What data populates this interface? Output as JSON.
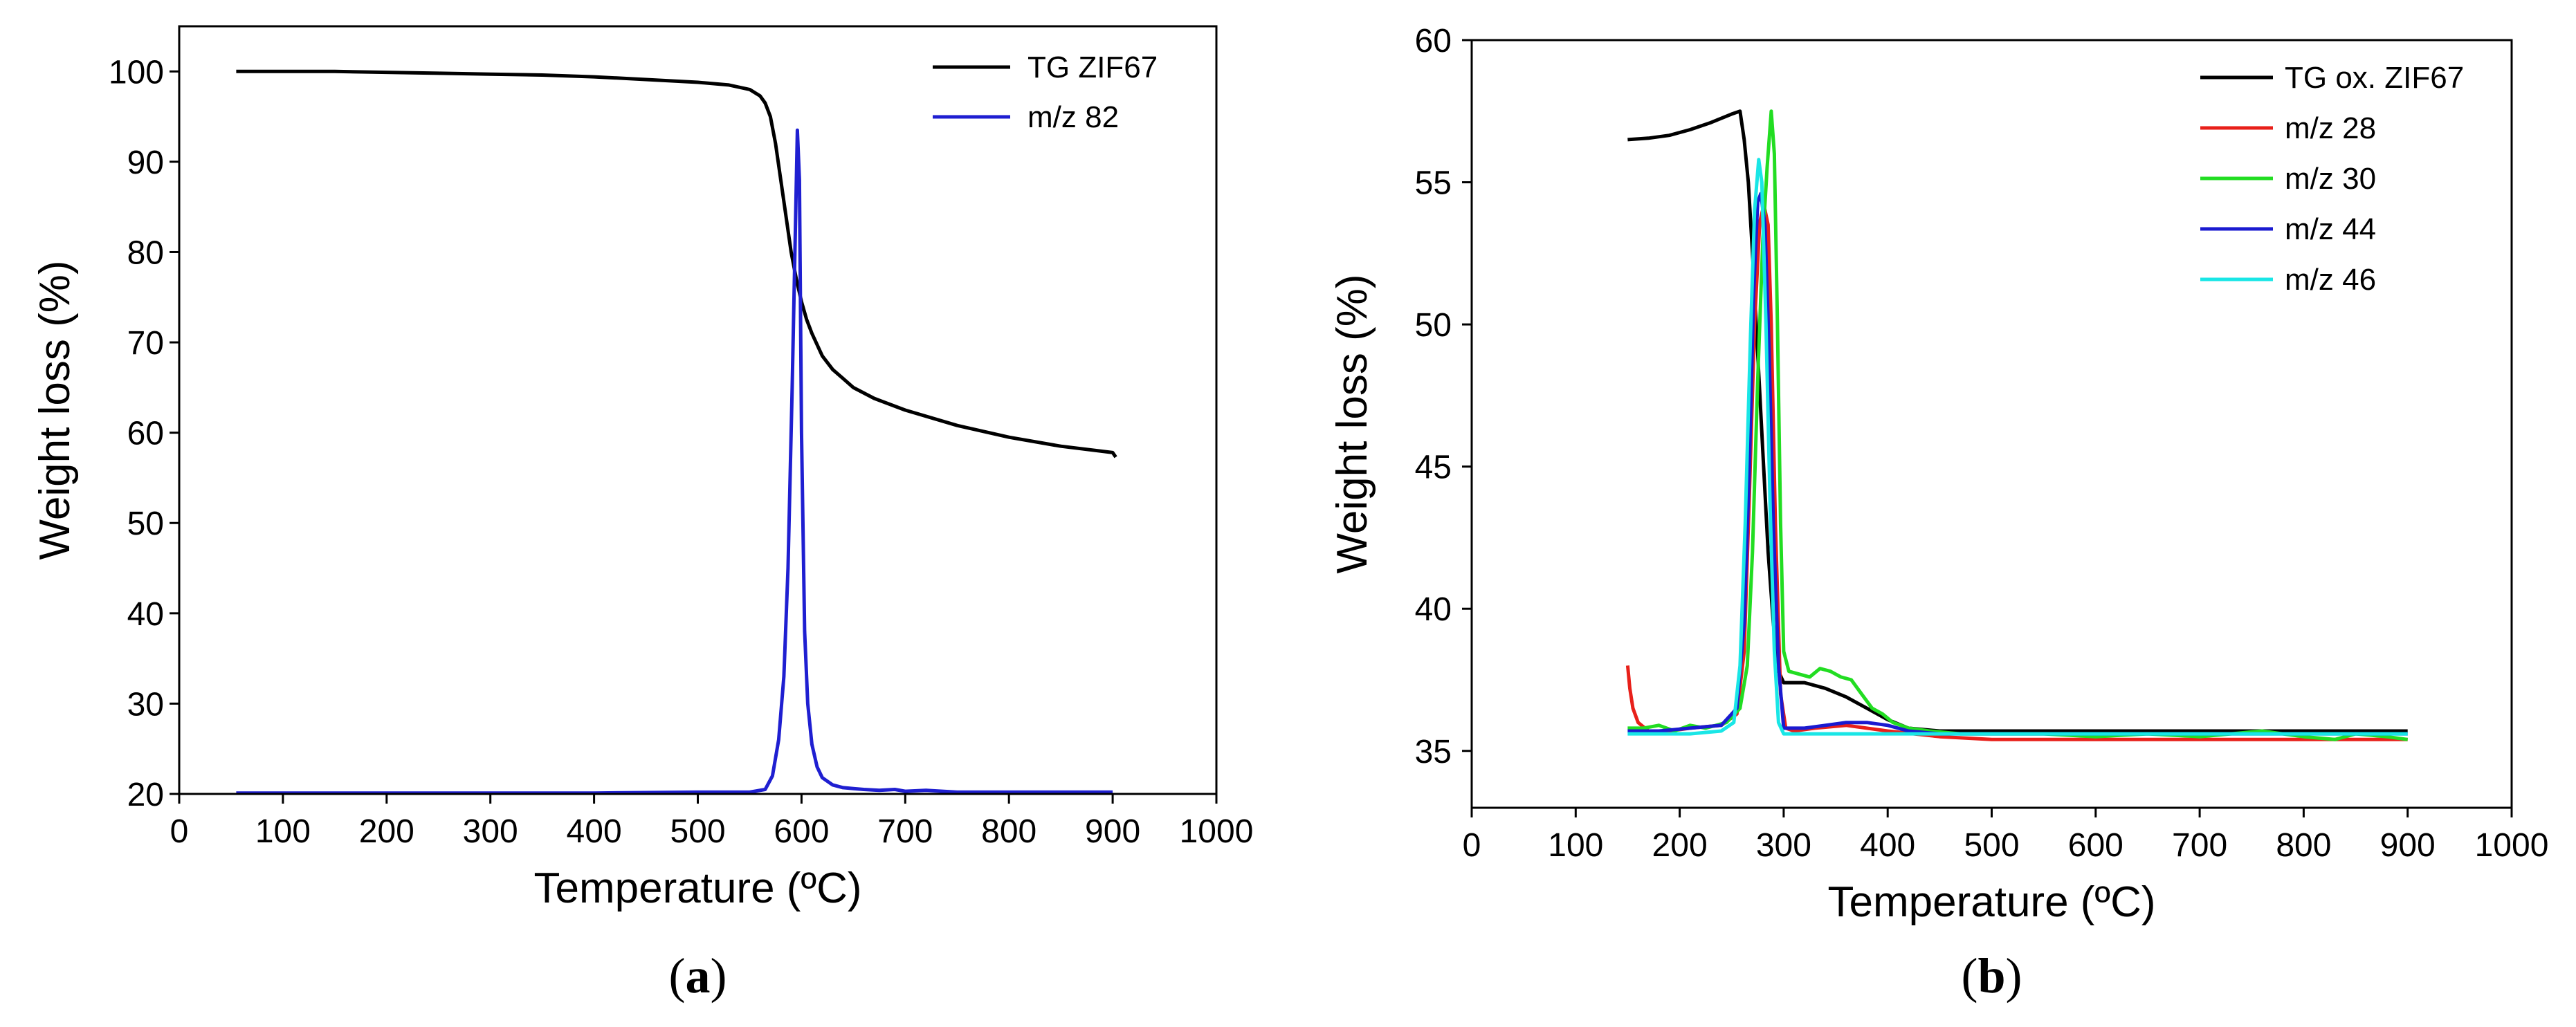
{
  "chart_data": [
    {
      "id": "a",
      "type": "line",
      "panel_label": {
        "open": "(",
        "letter": "a",
        "close": ")"
      },
      "xlabel": "Temperature (ºC)",
      "ylabel": "Weight loss (%)",
      "xlim": [
        0,
        1000
      ],
      "ylim": [
        20,
        105
      ],
      "xticks": [
        0,
        100,
        200,
        300,
        400,
        500,
        600,
        700,
        800,
        900,
        1000
      ],
      "yticks": [
        20,
        30,
        40,
        50,
        60,
        70,
        80,
        90,
        100
      ],
      "legend_position": "top-right",
      "series": [
        {
          "name": "TG ZIF67",
          "color": "#000000",
          "x": [
            55,
            100,
            150,
            200,
            250,
            300,
            350,
            400,
            450,
            500,
            530,
            550,
            560,
            565,
            570,
            575,
            580,
            585,
            590,
            595,
            600,
            605,
            610,
            620,
            630,
            640,
            650,
            670,
            700,
            750,
            800,
            850,
            900,
            903
          ],
          "y": [
            100.0,
            100.0,
            100.0,
            99.9,
            99.8,
            99.7,
            99.6,
            99.4,
            99.1,
            98.8,
            98.5,
            98.0,
            97.3,
            96.5,
            95.0,
            92.0,
            88.0,
            84.0,
            80.0,
            77.0,
            74.5,
            72.5,
            71.0,
            68.5,
            67.0,
            66.0,
            65.0,
            63.8,
            62.5,
            60.8,
            59.5,
            58.5,
            57.8,
            57.3
          ]
        },
        {
          "name": "m/z 82",
          "color": "#1f1fd1",
          "x": [
            55,
            100,
            200,
            300,
            400,
            500,
            550,
            565,
            572,
            578,
            583,
            587,
            591,
            594,
            596,
            598,
            600,
            603,
            606,
            610,
            615,
            620,
            630,
            640,
            650,
            660,
            675,
            690,
            700,
            720,
            750,
            800,
            850,
            900
          ],
          "y": [
            20.1,
            20.1,
            20.1,
            20.1,
            20.1,
            20.2,
            20.2,
            20.5,
            22.0,
            26.0,
            33.0,
            45.0,
            65.0,
            82.0,
            93.5,
            88.0,
            60.0,
            38.0,
            30.0,
            25.5,
            23.0,
            21.8,
            21.0,
            20.7,
            20.6,
            20.5,
            20.4,
            20.5,
            20.3,
            20.4,
            20.2,
            20.2,
            20.2,
            20.2
          ]
        }
      ]
    },
    {
      "id": "b",
      "type": "line",
      "panel_label": {
        "open": "(",
        "letter": "b",
        "close": ")"
      },
      "xlabel": "Temperature (ºC)",
      "ylabel": "Weight loss (%)",
      "xlim": [
        0,
        1000
      ],
      "ylim": [
        33,
        60
      ],
      "xticks": [
        0,
        100,
        200,
        300,
        400,
        500,
        600,
        700,
        800,
        900,
        1000
      ],
      "yticks": [
        35,
        40,
        45,
        50,
        55,
        60
      ],
      "legend_position": "top-right",
      "series": [
        {
          "name": "TG ox. ZIF67",
          "color": "#000000",
          "x": [
            150,
            170,
            190,
            210,
            230,
            250,
            258,
            262,
            266,
            270,
            275,
            280,
            285,
            290,
            295,
            300,
            320,
            340,
            360,
            380,
            400,
            420,
            450,
            500,
            600,
            700,
            800,
            900
          ],
          "y": [
            56.5,
            56.55,
            56.65,
            56.85,
            57.1,
            57.4,
            57.5,
            56.5,
            55.0,
            52.5,
            49.0,
            45.5,
            42.0,
            39.5,
            37.8,
            37.4,
            37.4,
            37.2,
            36.9,
            36.5,
            36.1,
            35.8,
            35.7,
            35.7,
            35.7,
            35.7,
            35.7,
            35.7
          ]
        },
        {
          "name": "m/z 28",
          "color": "#e8201a",
          "x": [
            150,
            152,
            155,
            160,
            170,
            190,
            210,
            240,
            255,
            262,
            267,
            272,
            277,
            281,
            285,
            288,
            292,
            297,
            302,
            310,
            330,
            360,
            400,
            450,
            500,
            600,
            700,
            800,
            900
          ],
          "y": [
            38.0,
            37.2,
            36.5,
            36.0,
            35.7,
            35.7,
            35.8,
            35.9,
            36.3,
            38.5,
            44.0,
            50.0,
            53.6,
            54.2,
            53.5,
            50.0,
            43.0,
            37.0,
            35.8,
            35.7,
            35.8,
            35.9,
            35.7,
            35.5,
            35.4,
            35.4,
            35.4,
            35.4,
            35.4
          ]
        },
        {
          "name": "m/z 30",
          "color": "#22dd22",
          "x": [
            150,
            165,
            180,
            195,
            210,
            225,
            245,
            258,
            265,
            270,
            275,
            280,
            284,
            288,
            291,
            294,
            297,
            300,
            305,
            315,
            325,
            335,
            345,
            355,
            365,
            375,
            385,
            395,
            405,
            420,
            440,
            470,
            500,
            550,
            600,
            650,
            700,
            760,
            800,
            830,
            850,
            880,
            900
          ],
          "y": [
            35.8,
            35.8,
            35.9,
            35.7,
            35.9,
            35.8,
            36.0,
            36.5,
            38.0,
            42.0,
            48.0,
            53.0,
            55.5,
            57.5,
            56.0,
            50.0,
            43.0,
            38.5,
            37.8,
            37.7,
            37.6,
            37.9,
            37.8,
            37.6,
            37.5,
            37.0,
            36.5,
            36.3,
            36.0,
            35.8,
            35.7,
            35.6,
            35.6,
            35.6,
            35.5,
            35.6,
            35.5,
            35.7,
            35.5,
            35.4,
            35.6,
            35.5,
            35.4
          ]
        },
        {
          "name": "m/z 44",
          "color": "#1a1ad0",
          "x": [
            150,
            180,
            210,
            240,
            255,
            262,
            267,
            271,
            275,
            278,
            282,
            286,
            290,
            295,
            300,
            320,
            340,
            360,
            380,
            400,
            420,
            450,
            500,
            600,
            700,
            800,
            900
          ],
          "y": [
            35.7,
            35.7,
            35.8,
            35.9,
            36.5,
            39.5,
            45.0,
            51.0,
            54.3,
            54.6,
            53.5,
            49.0,
            43.0,
            38.0,
            35.8,
            35.8,
            35.9,
            36.0,
            36.0,
            35.9,
            35.7,
            35.6,
            35.6,
            35.6,
            35.6,
            35.6,
            35.6
          ]
        },
        {
          "name": "m/z 46",
          "color": "#19e6e6",
          "x": [
            150,
            180,
            210,
            240,
            252,
            258,
            263,
            268,
            272,
            276,
            279,
            283,
            287,
            291,
            295,
            300,
            330,
            360,
            400,
            450,
            500,
            600,
            700,
            800,
            900
          ],
          "y": [
            35.6,
            35.6,
            35.6,
            35.7,
            36.0,
            38.0,
            43.0,
            49.5,
            54.0,
            55.8,
            55.0,
            50.0,
            43.5,
            38.5,
            36.0,
            35.6,
            35.6,
            35.6,
            35.6,
            35.6,
            35.6,
            35.6,
            35.6,
            35.6,
            35.6
          ]
        }
      ]
    }
  ]
}
